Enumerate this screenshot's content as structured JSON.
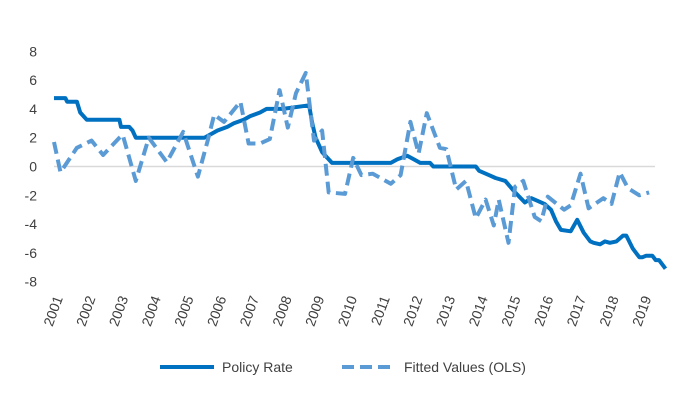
{
  "chart_data": {
    "type": "line",
    "title": "",
    "xlabel": "",
    "ylabel": "",
    "ylim": [
      -8,
      8
    ],
    "yticks": [
      "8",
      "6",
      "4",
      "2",
      "0",
      "-2",
      "-4",
      "-6",
      "-8"
    ],
    "xticks": [
      "2001",
      "2002",
      "2003",
      "2004",
      "2005",
      "2006",
      "2007",
      "2008",
      "2009",
      "2010",
      "2011",
      "2012",
      "2013",
      "2014",
      "2015",
      "2016",
      "2017",
      "2018",
      "2019"
    ],
    "grid": "zero line only",
    "legend_position": "bottom",
    "series": [
      {
        "name": "Policy Rate",
        "color": "#0070C0",
        "style": "solid",
        "x": [
          2001.0,
          2001.35,
          2001.4,
          2001.7,
          2001.8,
          2002.0,
          2003.0,
          2003.05,
          2003.3,
          2003.4,
          2003.5,
          2005.6,
          2005.8,
          2006.0,
          2006.3,
          2006.5,
          2006.8,
          2007.0,
          2007.3,
          2007.5,
          2008.0,
          2008.8,
          2008.9,
          2009.0,
          2009.2,
          2009.5,
          2011.3,
          2011.5,
          2011.8,
          2012.0,
          2012.2,
          2012.5,
          2012.6,
          2013.9,
          2014.0,
          2014.3,
          2014.5,
          2014.8,
          2015.1,
          2015.4,
          2015.6,
          2015.8,
          2016.0,
          2016.2,
          2016.35,
          2016.5,
          2016.8,
          2017.0,
          2017.2,
          2017.4,
          2017.5,
          2017.7,
          2017.85,
          2018.0,
          2018.2,
          2018.4,
          2018.5,
          2018.7,
          2018.9,
          2019.0,
          2019.1,
          2019.3,
          2019.4,
          2019.5,
          2019.7
        ],
        "values": [
          4.75,
          4.75,
          4.5,
          4.5,
          3.75,
          3.25,
          3.25,
          2.75,
          2.75,
          2.5,
          2.0,
          2.0,
          2.25,
          2.5,
          2.75,
          3.0,
          3.25,
          3.5,
          3.75,
          4.0,
          4.0,
          4.25,
          3.0,
          2.0,
          1.0,
          0.25,
          0.25,
          0.5,
          0.75,
          0.5,
          0.25,
          0.25,
          0.0,
          0.0,
          -0.3,
          -0.6,
          -0.8,
          -1.0,
          -1.8,
          -2.5,
          -2.2,
          -2.4,
          -2.6,
          -3.0,
          -3.8,
          -4.4,
          -4.5,
          -3.7,
          -4.6,
          -5.2,
          -5.3,
          -5.4,
          -5.2,
          -5.3,
          -5.2,
          -4.8,
          -4.8,
          -5.7,
          -6.3,
          -6.3,
          -6.2,
          -6.2,
          -6.5,
          -6.5,
          -7.1
        ]
      },
      {
        "name": "Fitted Values (OLS)",
        "color": "#5B9BD5",
        "style": "dashed",
        "x": [
          2001.0,
          2001.2,
          2001.7,
          2002.15,
          2002.5,
          2003.0,
          2003.1,
          2003.5,
          2003.9,
          2004.45,
          2004.95,
          2005.4,
          2005.7,
          2005.9,
          2006.2,
          2006.7,
          2006.95,
          2007.3,
          2007.6,
          2007.9,
          2008.15,
          2008.4,
          2008.7,
          2008.95,
          2009.2,
          2009.4,
          2009.9,
          2010.15,
          2010.4,
          2010.75,
          2011.3,
          2011.6,
          2011.9,
          2012.15,
          2012.4,
          2012.8,
          2013.0,
          2013.3,
          2013.6,
          2013.9,
          2014.2,
          2014.45,
          2014.6,
          2014.9,
          2015.1,
          2015.35,
          2015.7,
          2015.9,
          2016.1,
          2016.6,
          2016.8,
          2017.1,
          2017.35,
          2017.8,
          2018.05,
          2018.3,
          2018.55,
          2018.9,
          2019.2
        ],
        "values": [
          1.7,
          -0.4,
          1.3,
          1.8,
          0.8,
          2.0,
          2.2,
          -1.0,
          2.0,
          0.3,
          2.4,
          -0.7,
          1.8,
          3.6,
          3.1,
          4.5,
          1.6,
          1.6,
          1.9,
          5.3,
          2.7,
          5.1,
          6.5,
          1.8,
          2.5,
          -1.8,
          -1.9,
          0.6,
          -0.6,
          -0.5,
          -1.2,
          -0.6,
          3.1,
          0.9,
          3.7,
          1.3,
          1.2,
          -1.6,
          -1.0,
          -3.6,
          -2.3,
          -4.1,
          -2.3,
          -5.3,
          -1.4,
          -1.0,
          -3.5,
          -3.8,
          -2.1,
          -3.0,
          -2.7,
          -0.5,
          -2.9,
          -2.2,
          -2.6,
          -0.4,
          -1.5,
          -2.0,
          -1.8
        ]
      }
    ]
  }
}
